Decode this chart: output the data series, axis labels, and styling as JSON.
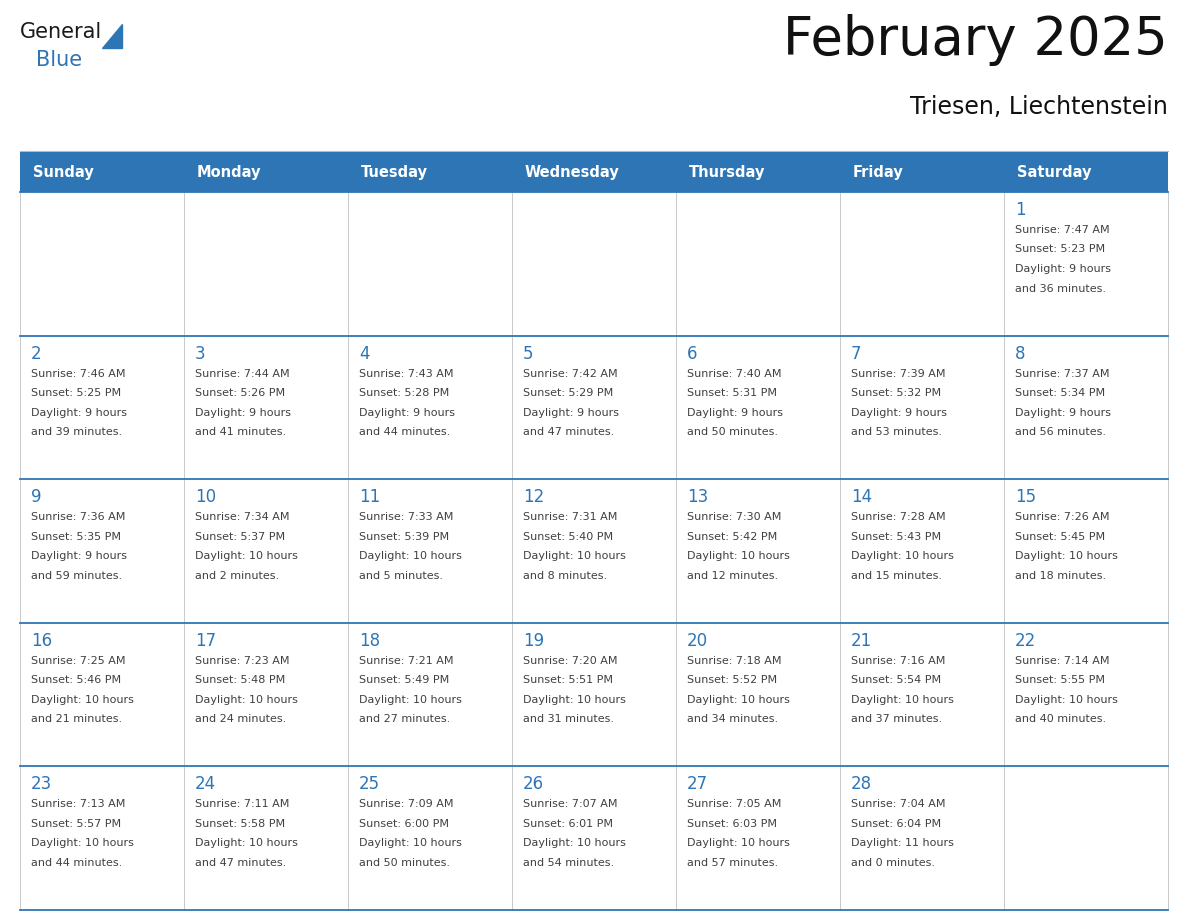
{
  "title": "February 2025",
  "subtitle": "Triesen, Liechtenstein",
  "header_bg": "#2E75B6",
  "header_text_color": "#FFFFFF",
  "cell_bg": "#FFFFFF",
  "cell_border_color": "#2E75B6",
  "day_num_color": "#2E75B6",
  "cell_text_color": "#404040",
  "weekdays": [
    "Sunday",
    "Monday",
    "Tuesday",
    "Wednesday",
    "Thursday",
    "Friday",
    "Saturday"
  ],
  "logo_general_color": "#1a1a1a",
  "logo_blue_color": "#2E75B6",
  "calendar": [
    [
      null,
      null,
      null,
      null,
      null,
      null,
      {
        "day": "1",
        "sunrise": "7:47 AM",
        "sunset": "5:23 PM",
        "daylight": "9 hours",
        "daylight2": "and 36 minutes."
      }
    ],
    [
      {
        "day": "2",
        "sunrise": "7:46 AM",
        "sunset": "5:25 PM",
        "daylight": "9 hours",
        "daylight2": "and 39 minutes."
      },
      {
        "day": "3",
        "sunrise": "7:44 AM",
        "sunset": "5:26 PM",
        "daylight": "9 hours",
        "daylight2": "and 41 minutes."
      },
      {
        "day": "4",
        "sunrise": "7:43 AM",
        "sunset": "5:28 PM",
        "daylight": "9 hours",
        "daylight2": "and 44 minutes."
      },
      {
        "day": "5",
        "sunrise": "7:42 AM",
        "sunset": "5:29 PM",
        "daylight": "9 hours",
        "daylight2": "and 47 minutes."
      },
      {
        "day": "6",
        "sunrise": "7:40 AM",
        "sunset": "5:31 PM",
        "daylight": "9 hours",
        "daylight2": "and 50 minutes."
      },
      {
        "day": "7",
        "sunrise": "7:39 AM",
        "sunset": "5:32 PM",
        "daylight": "9 hours",
        "daylight2": "and 53 minutes."
      },
      {
        "day": "8",
        "sunrise": "7:37 AM",
        "sunset": "5:34 PM",
        "daylight": "9 hours",
        "daylight2": "and 56 minutes."
      }
    ],
    [
      {
        "day": "9",
        "sunrise": "7:36 AM",
        "sunset": "5:35 PM",
        "daylight": "9 hours",
        "daylight2": "and 59 minutes."
      },
      {
        "day": "10",
        "sunrise": "7:34 AM",
        "sunset": "5:37 PM",
        "daylight": "10 hours",
        "daylight2": "and 2 minutes."
      },
      {
        "day": "11",
        "sunrise": "7:33 AM",
        "sunset": "5:39 PM",
        "daylight": "10 hours",
        "daylight2": "and 5 minutes."
      },
      {
        "day": "12",
        "sunrise": "7:31 AM",
        "sunset": "5:40 PM",
        "daylight": "10 hours",
        "daylight2": "and 8 minutes."
      },
      {
        "day": "13",
        "sunrise": "7:30 AM",
        "sunset": "5:42 PM",
        "daylight": "10 hours",
        "daylight2": "and 12 minutes."
      },
      {
        "day": "14",
        "sunrise": "7:28 AM",
        "sunset": "5:43 PM",
        "daylight": "10 hours",
        "daylight2": "and 15 minutes."
      },
      {
        "day": "15",
        "sunrise": "7:26 AM",
        "sunset": "5:45 PM",
        "daylight": "10 hours",
        "daylight2": "and 18 minutes."
      }
    ],
    [
      {
        "day": "16",
        "sunrise": "7:25 AM",
        "sunset": "5:46 PM",
        "daylight": "10 hours",
        "daylight2": "and 21 minutes."
      },
      {
        "day": "17",
        "sunrise": "7:23 AM",
        "sunset": "5:48 PM",
        "daylight": "10 hours",
        "daylight2": "and 24 minutes."
      },
      {
        "day": "18",
        "sunrise": "7:21 AM",
        "sunset": "5:49 PM",
        "daylight": "10 hours",
        "daylight2": "and 27 minutes."
      },
      {
        "day": "19",
        "sunrise": "7:20 AM",
        "sunset": "5:51 PM",
        "daylight": "10 hours",
        "daylight2": "and 31 minutes."
      },
      {
        "day": "20",
        "sunrise": "7:18 AM",
        "sunset": "5:52 PM",
        "daylight": "10 hours",
        "daylight2": "and 34 minutes."
      },
      {
        "day": "21",
        "sunrise": "7:16 AM",
        "sunset": "5:54 PM",
        "daylight": "10 hours",
        "daylight2": "and 37 minutes."
      },
      {
        "day": "22",
        "sunrise": "7:14 AM",
        "sunset": "5:55 PM",
        "daylight": "10 hours",
        "daylight2": "and 40 minutes."
      }
    ],
    [
      {
        "day": "23",
        "sunrise": "7:13 AM",
        "sunset": "5:57 PM",
        "daylight": "10 hours",
        "daylight2": "and 44 minutes."
      },
      {
        "day": "24",
        "sunrise": "7:11 AM",
        "sunset": "5:58 PM",
        "daylight": "10 hours",
        "daylight2": "and 47 minutes."
      },
      {
        "day": "25",
        "sunrise": "7:09 AM",
        "sunset": "6:00 PM",
        "daylight": "10 hours",
        "daylight2": "and 50 minutes."
      },
      {
        "day": "26",
        "sunrise": "7:07 AM",
        "sunset": "6:01 PM",
        "daylight": "10 hours",
        "daylight2": "and 54 minutes."
      },
      {
        "day": "27",
        "sunrise": "7:05 AM",
        "sunset": "6:03 PM",
        "daylight": "10 hours",
        "daylight2": "and 57 minutes."
      },
      {
        "day": "28",
        "sunrise": "7:04 AM",
        "sunset": "6:04 PM",
        "daylight": "11 hours",
        "daylight2": "and 0 minutes."
      },
      null
    ]
  ]
}
